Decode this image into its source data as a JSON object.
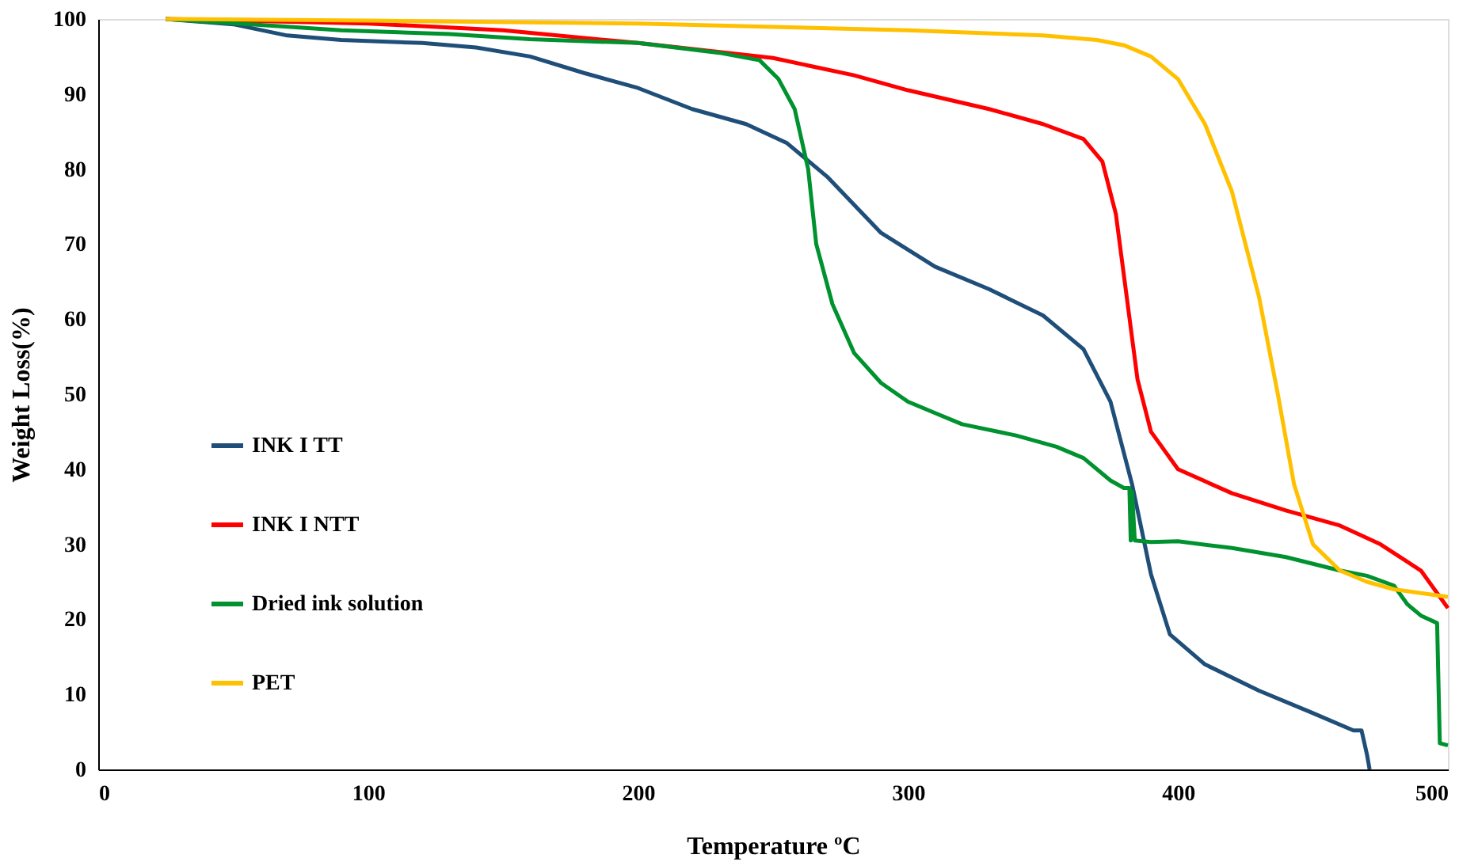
{
  "chart_data": {
    "type": "line",
    "xlabel": "Temperature ºC",
    "ylabel": "Weight Loss(%)",
    "xlim": [
      0,
      500
    ],
    "ylim": [
      0,
      100
    ],
    "xticks": [
      0,
      100,
      200,
      300,
      400,
      500
    ],
    "yticks": [
      0,
      10,
      20,
      30,
      40,
      50,
      60,
      70,
      80,
      90,
      100
    ],
    "grid": false,
    "legend": "left",
    "marker": "none",
    "line_style": "solid",
    "series": [
      {
        "name": "INK I TT",
        "color": "#1f4e79",
        "x": [
          25,
          50,
          70,
          90,
          120,
          140,
          160,
          180,
          200,
          220,
          240,
          255,
          270,
          290,
          310,
          330,
          350,
          365,
          375,
          383,
          390,
          397,
          410,
          430,
          450,
          465,
          468,
          470,
          471
        ],
        "values": [
          100,
          99.3,
          97.8,
          97.2,
          96.8,
          96.2,
          95,
          92.8,
          90.8,
          88,
          86,
          83.5,
          79,
          71.5,
          67,
          64,
          60.5,
          56,
          49,
          38,
          26,
          18,
          14,
          10.5,
          7.5,
          5.2,
          5.2,
          2,
          0
        ]
      },
      {
        "name": "INK I NTT",
        "color": "#ff0000",
        "x": [
          25,
          100,
          150,
          200,
          250,
          280,
          300,
          330,
          350,
          365,
          372,
          377,
          381,
          385,
          390,
          400,
          420,
          440,
          460,
          475,
          490,
          500
        ],
        "values": [
          100,
          99.4,
          98.5,
          96.8,
          94.8,
          92.5,
          90.5,
          88,
          86,
          84,
          81,
          74,
          63,
          52,
          45,
          40,
          36.8,
          34.5,
          32.5,
          30,
          26.5,
          21.5
        ]
      },
      {
        "name": "Dried ink solution",
        "color": "#00922e",
        "x": [
          25,
          60,
          90,
          130,
          160,
          200,
          230,
          245,
          252,
          258,
          263,
          266,
          272,
          280,
          290,
          300,
          310,
          320,
          340,
          355,
          365,
          375,
          380,
          382,
          382.5,
          383,
          384,
          390,
          400,
          420,
          440,
          460,
          470,
          480,
          485,
          490,
          496,
          497,
          500
        ],
        "values": [
          100,
          99.2,
          98.5,
          98,
          97.3,
          96.8,
          95.5,
          94.5,
          92,
          88,
          80,
          70,
          62,
          55.5,
          51.5,
          49,
          47.5,
          46,
          44.5,
          43,
          41.5,
          38.5,
          37.5,
          37.5,
          30.5,
          37,
          30.5,
          30.3,
          30.4,
          29.5,
          28.3,
          26.5,
          25.8,
          24.5,
          22,
          20.5,
          19.5,
          3.5,
          3.2
        ]
      },
      {
        "name": "PET",
        "color": "#ffc000",
        "x": [
          25,
          100,
          200,
          300,
          350,
          370,
          380,
          390,
          400,
          410,
          420,
          430,
          437,
          443,
          450,
          460,
          470,
          480,
          500
        ],
        "values": [
          100,
          99.8,
          99.4,
          98.5,
          97.8,
          97.2,
          96.5,
          95,
          92,
          86,
          77,
          63,
          50,
          38,
          30,
          26.5,
          25,
          24,
          23
        ]
      }
    ]
  }
}
